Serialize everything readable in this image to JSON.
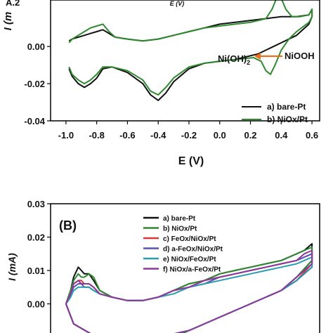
{
  "chart_data": [
    {
      "panel_label": "",
      "type": "line",
      "title": "",
      "xlabel": "E (V)",
      "ylabel": "I (m",
      "inset_label": "E (V)",
      "top_left_fragment": "A.2",
      "xlim": [
        -1.1,
        0.65
      ],
      "ylim": [
        -0.04,
        0.025
      ],
      "xticks": [
        "-1.0",
        "-0.8",
        "-0.6",
        "-0.4",
        "-0.2",
        "0.0",
        "0.2",
        "0.4",
        "0.6"
      ],
      "xtick_values": [
        -1.0,
        -0.8,
        -0.6,
        -0.4,
        -0.2,
        0.0,
        0.2,
        0.4,
        0.6
      ],
      "yticks": [
        "0.00",
        "-0.02",
        "-0.04"
      ],
      "ytick_values": [
        0.0,
        -0.02,
        -0.04
      ],
      "legend_placement": "bottom-right",
      "annotations": {
        "left": "Ni(OH)",
        "left_sub": "2",
        "right": "NiOOH",
        "arrow_color": "#e8711f"
      },
      "series": [
        {
          "name": "a) bare-Pt",
          "color": "#111111",
          "x": [
            -0.98,
            -0.96,
            -0.92,
            -0.88,
            -0.84,
            -0.8,
            -0.76,
            -0.72,
            -0.68,
            -0.6,
            -0.5,
            -0.4,
            -0.3,
            -0.2,
            -0.1,
            0.0,
            0.1,
            0.2,
            0.3,
            0.4,
            0.5,
            0.58,
            0.6,
            0.6,
            0.58,
            0.5,
            0.4,
            0.35,
            0.3,
            0.25,
            0.2,
            0.1,
            0.0,
            -0.1,
            -0.2,
            -0.3,
            -0.35,
            -0.4,
            -0.45,
            -0.5,
            -0.6,
            -0.7,
            -0.76,
            -0.8,
            -0.84,
            -0.88,
            -0.92,
            -0.96,
            -0.98
          ],
          "y": [
            0.003,
            0.004,
            0.005,
            0.006,
            0.007,
            0.008,
            0.009,
            0.007,
            0.005,
            0.004,
            0.003,
            0.004,
            0.006,
            0.008,
            0.01,
            0.012,
            0.013,
            0.014,
            0.015,
            0.016,
            0.016,
            0.017,
            0.02,
            0.016,
            0.012,
            0.006,
            0.002,
            0.0,
            -0.002,
            -0.004,
            -0.005,
            -0.007,
            -0.008,
            -0.009,
            -0.012,
            -0.019,
            -0.025,
            -0.029,
            -0.026,
            -0.02,
            -0.014,
            -0.011,
            -0.012,
            -0.017,
            -0.02,
            -0.022,
            -0.02,
            -0.016,
            -0.012
          ]
        },
        {
          "name": "b) NiOx/Pt",
          "color": "#2f8a2f",
          "x": [
            -0.98,
            -0.96,
            -0.92,
            -0.88,
            -0.84,
            -0.8,
            -0.76,
            -0.72,
            -0.68,
            -0.6,
            -0.5,
            -0.4,
            -0.3,
            -0.2,
            -0.1,
            0.0,
            0.1,
            0.2,
            0.3,
            0.34,
            0.37,
            0.4,
            0.43,
            0.47,
            0.52,
            0.58,
            0.6,
            0.6,
            0.58,
            0.5,
            0.45,
            0.4,
            0.36,
            0.33,
            0.3,
            0.27,
            0.22,
            0.1,
            0.0,
            -0.1,
            -0.2,
            -0.3,
            -0.35,
            -0.4,
            -0.45,
            -0.5,
            -0.6,
            -0.7,
            -0.76,
            -0.8,
            -0.84,
            -0.88,
            -0.92,
            -0.96,
            -0.98
          ],
          "y": [
            0.002,
            0.004,
            0.006,
            0.008,
            0.01,
            0.011,
            0.012,
            0.008,
            0.005,
            0.004,
            0.003,
            0.004,
            0.006,
            0.008,
            0.01,
            0.011,
            0.012,
            0.013,
            0.015,
            0.02,
            0.026,
            0.026,
            0.02,
            0.016,
            0.016,
            0.017,
            0.02,
            0.016,
            0.013,
            0.008,
            0.004,
            -0.002,
            -0.01,
            -0.015,
            -0.013,
            -0.008,
            -0.006,
            -0.007,
            -0.008,
            -0.009,
            -0.011,
            -0.017,
            -0.022,
            -0.026,
            -0.024,
            -0.018,
            -0.013,
            -0.011,
            -0.011,
            -0.015,
            -0.018,
            -0.02,
            -0.018,
            -0.015,
            -0.011
          ]
        }
      ]
    },
    {
      "panel_label": "(B)",
      "type": "line",
      "title": "",
      "xlabel": "",
      "ylabel": "I (mA)",
      "xlim": [
        -1.1,
        0.65
      ],
      "ylim": [
        -0.01,
        0.03
      ],
      "yticks": [
        "0.03",
        "0.02",
        "0.01",
        "0.00"
      ],
      "ytick_values": [
        0.03,
        0.02,
        0.01,
        0.0
      ],
      "legend_placement": "top-right",
      "series": [
        {
          "name": "a) bare-Pt",
          "color": "#111111",
          "x": [
            -1.0,
            -0.97,
            -0.95,
            -0.92,
            -0.9,
            -0.88,
            -0.85,
            -0.82,
            -0.78,
            -0.7,
            -0.6,
            -0.5,
            -0.4,
            -0.3,
            -0.2,
            -0.1,
            0.0,
            0.1,
            0.2,
            0.3,
            0.4,
            0.5,
            0.55,
            0.6,
            0.6,
            0.5,
            0.4,
            0.3,
            0.2,
            0.1,
            0.0,
            -0.1,
            -0.2,
            -0.3,
            -0.4,
            -0.6,
            -0.8,
            -0.95,
            -1.0
          ],
          "y": [
            0.0,
            0.004,
            0.008,
            0.011,
            0.01,
            0.009,
            0.009,
            0.007,
            0.004,
            0.002,
            0.001,
            0.001,
            0.002,
            0.004,
            0.006,
            0.007,
            0.009,
            0.01,
            0.011,
            0.012,
            0.013,
            0.015,
            0.016,
            0.018,
            0.013,
            0.008,
            0.004,
            0.002,
            0.0,
            -0.002,
            -0.004,
            -0.006,
            -0.008,
            -0.01,
            -0.01,
            -0.01,
            -0.01,
            -0.006,
            0.0
          ]
        },
        {
          "name": "b) NiOx/Pt",
          "color": "#2f8a2f",
          "x": [
            -1.0,
            -0.97,
            -0.95,
            -0.92,
            -0.9,
            -0.88,
            -0.85,
            -0.82,
            -0.78,
            -0.7,
            -0.6,
            -0.5,
            -0.4,
            -0.3,
            -0.2,
            -0.1,
            0.0,
            0.1,
            0.2,
            0.3,
            0.4,
            0.5,
            0.55,
            0.6,
            0.6,
            0.5,
            0.4,
            0.3,
            0.2,
            0.1,
            0.0,
            -0.1,
            -0.2,
            -0.3,
            -0.4,
            -0.6,
            -0.8,
            -0.95,
            -1.0
          ],
          "y": [
            0.0,
            0.004,
            0.007,
            0.009,
            0.008,
            0.008,
            0.009,
            0.008,
            0.004,
            0.002,
            0.001,
            0.001,
            0.002,
            0.004,
            0.006,
            0.007,
            0.009,
            0.01,
            0.011,
            0.012,
            0.013,
            0.015,
            0.016,
            0.017,
            0.013,
            0.008,
            0.004,
            0.002,
            0.0,
            -0.002,
            -0.004,
            -0.006,
            -0.008,
            -0.01,
            -0.01,
            -0.01,
            -0.01,
            -0.006,
            0.0
          ]
        },
        {
          "name": "c) FeOx/NiOx/Pt",
          "color": "#d43a3a",
          "x": [
            -1.0,
            -0.97,
            -0.95,
            -0.92,
            -0.9,
            -0.88,
            -0.85,
            -0.82,
            -0.78,
            -0.7,
            -0.6,
            -0.5,
            -0.4,
            -0.3,
            -0.2,
            -0.1,
            0.0,
            0.1,
            0.2,
            0.3,
            0.4,
            0.5,
            0.55,
            0.6,
            0.6,
            0.5,
            0.4,
            0.3,
            0.2,
            0.1,
            0.0,
            -0.1,
            -0.2,
            -0.3,
            -0.4,
            -0.6,
            -0.8,
            -0.95,
            -1.0
          ],
          "y": [
            0.0,
            0.003,
            0.006,
            0.007,
            0.007,
            0.006,
            0.006,
            0.005,
            0.003,
            0.002,
            0.001,
            0.001,
            0.002,
            0.004,
            0.005,
            0.007,
            0.008,
            0.009,
            0.01,
            0.011,
            0.012,
            0.013,
            0.014,
            0.015,
            0.012,
            0.007,
            0.004,
            0.002,
            0.0,
            -0.002,
            -0.004,
            -0.006,
            -0.008,
            -0.009,
            -0.01,
            -0.01,
            -0.01,
            -0.006,
            0.0
          ]
        },
        {
          "name": "d) a-FeOx/NiOx/Pt",
          "color": "#5b4fb8",
          "x": [
            -1.0,
            -0.97,
            -0.95,
            -0.92,
            -0.9,
            -0.88,
            -0.85,
            -0.82,
            -0.78,
            -0.7,
            -0.6,
            -0.5,
            -0.4,
            -0.3,
            -0.2,
            -0.1,
            0.0,
            0.1,
            0.2,
            0.3,
            0.4,
            0.5,
            0.55,
            0.6,
            0.6,
            0.5,
            0.4,
            0.3,
            0.2,
            0.1,
            0.0,
            -0.1,
            -0.2,
            -0.3,
            -0.4,
            -0.6,
            -0.8,
            -0.95,
            -1.0
          ],
          "y": [
            0.0,
            0.003,
            0.005,
            0.006,
            0.006,
            0.005,
            0.005,
            0.004,
            0.003,
            0.002,
            0.001,
            0.001,
            0.002,
            0.004,
            0.005,
            0.006,
            0.008,
            0.009,
            0.01,
            0.011,
            0.012,
            0.013,
            0.014,
            0.015,
            0.011,
            0.007,
            0.004,
            0.002,
            0.0,
            -0.002,
            -0.004,
            -0.006,
            -0.008,
            -0.009,
            -0.01,
            -0.01,
            -0.01,
            -0.006,
            0.0
          ]
        },
        {
          "name": "e) NiOx/FeOx/Pt",
          "color": "#2a9bb0",
          "x": [
            -1.0,
            -0.97,
            -0.95,
            -0.92,
            -0.9,
            -0.88,
            -0.85,
            -0.82,
            -0.78,
            -0.7,
            -0.6,
            -0.5,
            -0.4,
            -0.3,
            -0.2,
            -0.1,
            0.0,
            0.1,
            0.2,
            0.3,
            0.4,
            0.5,
            0.55,
            0.6,
            0.6,
            0.5,
            0.4,
            0.3,
            0.2,
            0.1,
            0.0,
            -0.1,
            -0.2,
            -0.3,
            -0.4,
            -0.6,
            -0.8,
            -0.95,
            -1.0
          ],
          "y": [
            0.0,
            0.002,
            0.004,
            0.005,
            0.005,
            0.005,
            0.005,
            0.004,
            0.003,
            0.002,
            0.001,
            0.001,
            0.002,
            0.003,
            0.005,
            0.006,
            0.007,
            0.008,
            0.009,
            0.01,
            0.011,
            0.012,
            0.013,
            0.014,
            0.011,
            0.007,
            0.004,
            0.002,
            0.0,
            -0.002,
            -0.004,
            -0.006,
            -0.008,
            -0.009,
            -0.01,
            -0.01,
            -0.01,
            -0.006,
            0.0
          ]
        },
        {
          "name": "f) NiOx/a-FeOx/Pt",
          "color": "#8b3a9c",
          "x": [
            -1.0,
            -0.97,
            -0.95,
            -0.92,
            -0.9,
            -0.88,
            -0.85,
            -0.82,
            -0.78,
            -0.7,
            -0.6,
            -0.5,
            -0.4,
            -0.3,
            -0.2,
            -0.1,
            0.0,
            0.1,
            0.2,
            0.3,
            0.4,
            0.5,
            0.55,
            0.6,
            0.6,
            0.5,
            0.4,
            0.3,
            0.2,
            0.1,
            0.0,
            -0.1,
            -0.2,
            -0.3,
            -0.4,
            -0.6,
            -0.8,
            -0.95,
            -1.0
          ],
          "y": [
            0.0,
            0.003,
            0.006,
            0.007,
            0.006,
            0.006,
            0.006,
            0.005,
            0.003,
            0.002,
            0.001,
            0.001,
            0.002,
            0.004,
            0.005,
            0.007,
            0.008,
            0.009,
            0.01,
            0.011,
            0.012,
            0.013,
            0.015,
            0.016,
            0.012,
            0.008,
            0.004,
            0.002,
            0.0,
            -0.002,
            -0.004,
            -0.006,
            -0.008,
            -0.009,
            -0.01,
            -0.01,
            -0.01,
            -0.006,
            0.0
          ]
        }
      ]
    }
  ]
}
